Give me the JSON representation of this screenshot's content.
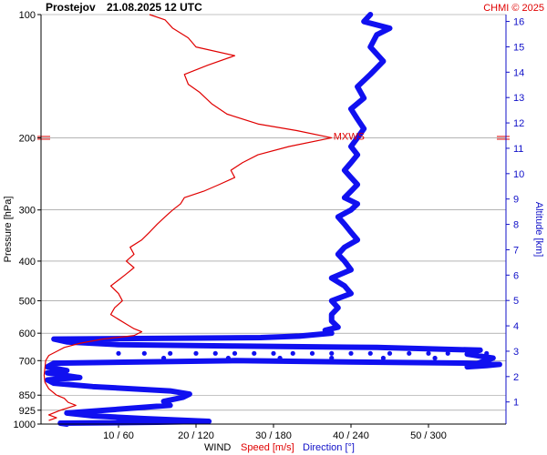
{
  "header": {
    "station": "Prostejov",
    "datetime": "21.08.2025 12 UTC",
    "credit": "CHMI © 2025"
  },
  "colors": {
    "speed": "#e00000",
    "direction": "#1010f0",
    "grid": "#888888",
    "axis": "#000000",
    "altitude_axis": "#1010c8"
  },
  "axes": {
    "left_label": "Pressure [hPa]",
    "right_label": "Altitude [km]",
    "bottom_title": "WIND",
    "bottom_speed": "Speed [m/s]",
    "bottom_direction": "Direction [°]"
  },
  "chart_data": {
    "type": "line",
    "y_scale": "log-pressure",
    "y_range_hpa": [
      1000,
      100
    ],
    "pressure_ticks": [
      100,
      200,
      300,
      400,
      500,
      600,
      700,
      850,
      925,
      1000
    ],
    "x_ticks": [
      {
        "speed": 10,
        "direction": 60,
        "label": "10 / 60"
      },
      {
        "speed": 20,
        "direction": 120,
        "label": "20 / 120"
      },
      {
        "speed": 30,
        "direction": 180,
        "label": "30 / 180"
      },
      {
        "speed": 40,
        "direction": 240,
        "label": "40 / 240"
      },
      {
        "speed": 50,
        "direction": 300,
        "label": "50 / 300"
      }
    ],
    "speed_range": [
      0,
      60
    ],
    "direction_range": [
      0,
      360
    ],
    "altitude_ticks_km": [
      1,
      2,
      3,
      4,
      5,
      6,
      7,
      8,
      9,
      10,
      11,
      12,
      13,
      14,
      15,
      16
    ],
    "max_wind": {
      "label": "MXWS",
      "pressure": 200,
      "speed": 37.5
    },
    "series": [
      {
        "name": "Speed [m/s]",
        "points": [
          [
            980,
            1.0
          ],
          [
            965,
            2.0
          ],
          [
            950,
            1.0
          ],
          [
            925,
            2.5
          ],
          [
            900,
            4.5
          ],
          [
            885,
            3.5
          ],
          [
            865,
            3.0
          ],
          [
            850,
            2.0
          ],
          [
            820,
            1.0
          ],
          [
            790,
            0.5
          ],
          [
            760,
            0.4
          ],
          [
            730,
            0.5
          ],
          [
            700,
            0.6
          ],
          [
            680,
            1.0
          ],
          [
            665,
            2.0
          ],
          [
            650,
            3.0
          ],
          [
            635,
            5.0
          ],
          [
            620,
            8.0
          ],
          [
            608,
            12.0
          ],
          [
            595,
            13.0
          ],
          [
            585,
            12.0
          ],
          [
            570,
            11.0
          ],
          [
            555,
            10.0
          ],
          [
            540,
            9.0
          ],
          [
            520,
            9.5
          ],
          [
            500,
            10.5
          ],
          [
            480,
            10.0
          ],
          [
            460,
            9.0
          ],
          [
            445,
            10.0
          ],
          [
            430,
            11.0
          ],
          [
            415,
            12.0
          ],
          [
            400,
            11.0
          ],
          [
            385,
            12.0
          ],
          [
            370,
            11.5
          ],
          [
            355,
            13.0
          ],
          [
            340,
            14.0
          ],
          [
            325,
            15.0
          ],
          [
            312,
            16.0
          ],
          [
            300,
            17.0
          ],
          [
            290,
            18.0
          ],
          [
            280,
            18.5
          ],
          [
            270,
            21.0
          ],
          [
            260,
            23.0
          ],
          [
            250,
            25.0
          ],
          [
            240,
            24.5
          ],
          [
            230,
            26.0
          ],
          [
            220,
            28.0
          ],
          [
            210,
            32.0
          ],
          [
            200,
            37.5
          ],
          [
            192,
            33.0
          ],
          [
            185,
            28.0
          ],
          [
            175,
            24.0
          ],
          [
            165,
            22.0
          ],
          [
            155,
            20.5
          ],
          [
            148,
            19.0
          ],
          [
            140,
            18.5
          ],
          [
            133,
            21.5
          ],
          [
            126,
            25.0
          ],
          [
            120,
            20.0
          ],
          [
            114,
            19.0
          ],
          [
            108,
            17.0
          ],
          [
            103,
            16.0
          ],
          [
            100,
            14.0
          ]
        ]
      },
      {
        "name": "Direction [°]",
        "points": [
          [
            1000,
            20
          ],
          [
            995,
            15
          ],
          [
            990,
            90
          ],
          [
            985,
            130
          ],
          [
            970,
            80
          ],
          [
            955,
            40
          ],
          [
            940,
            20
          ],
          [
            925,
            50
          ],
          [
            900,
            100
          ],
          [
            880,
            95
          ],
          [
            860,
            110
          ],
          [
            845,
            115
          ],
          [
            830,
            100
          ],
          [
            810,
            40
          ],
          [
            795,
            10
          ],
          [
            780,
            5
          ],
          [
            770,
            30
          ],
          [
            750,
            5
          ],
          [
            740,
            20
          ],
          [
            725,
            5
          ],
          [
            710,
            10
          ],
          [
            700,
            150
          ],
          [
            705,
            230
          ],
          [
            710,
            330
          ],
          [
            715,
            355
          ],
          [
            720,
            345
          ],
          [
            725,
            330
          ],
          [
            690,
            350
          ],
          [
            675,
            330
          ],
          [
            660,
            340
          ],
          [
            650,
            260
          ],
          [
            645,
            150
          ],
          [
            640,
            60
          ],
          [
            630,
            20
          ],
          [
            620,
            10
          ],
          [
            615,
            170
          ],
          [
            610,
            200
          ],
          [
            600,
            225
          ],
          [
            590,
            220
          ],
          [
            580,
            230
          ],
          [
            560,
            225
          ],
          [
            540,
            225
          ],
          [
            520,
            230
          ],
          [
            500,
            225
          ],
          [
            480,
            240
          ],
          [
            460,
            235
          ],
          [
            440,
            225
          ],
          [
            420,
            240
          ],
          [
            400,
            235
          ],
          [
            385,
            230
          ],
          [
            370,
            235
          ],
          [
            355,
            245
          ],
          [
            340,
            240
          ],
          [
            325,
            235
          ],
          [
            312,
            230
          ],
          [
            300,
            240
          ],
          [
            290,
            245
          ],
          [
            280,
            235
          ],
          [
            270,
            240
          ],
          [
            260,
            245
          ],
          [
            250,
            240
          ],
          [
            240,
            235
          ],
          [
            230,
            240
          ],
          [
            220,
            245
          ],
          [
            210,
            240
          ],
          [
            200,
            245
          ],
          [
            190,
            250
          ],
          [
            180,
            245
          ],
          [
            170,
            240
          ],
          [
            160,
            250
          ],
          [
            150,
            245
          ],
          [
            140,
            255
          ],
          [
            130,
            265
          ],
          [
            120,
            255
          ],
          [
            112,
            260
          ],
          [
            108,
            270
          ],
          [
            104,
            250
          ],
          [
            100,
            255
          ]
        ]
      },
      {
        "name": "Direction scatter",
        "points": [
          [
            672,
            135
          ],
          [
            672,
            165
          ],
          [
            672,
            195
          ],
          [
            672,
            225
          ],
          [
            672,
            255
          ],
          [
            672,
            285
          ],
          [
            672,
            315
          ],
          [
            672,
            345
          ],
          [
            672,
            60
          ],
          [
            672,
            80
          ],
          [
            672,
            100
          ],
          [
            672,
            120
          ],
          [
            672,
            150
          ],
          [
            672,
            180
          ],
          [
            672,
            210
          ],
          [
            672,
            240
          ],
          [
            672,
            270
          ],
          [
            672,
            300
          ],
          [
            672,
            330
          ],
          [
            690,
            95
          ],
          [
            690,
            145
          ],
          [
            690,
            185
          ],
          [
            690,
            225
          ],
          [
            690,
            265
          ],
          [
            690,
            305
          ],
          [
            690,
            345
          ]
        ]
      }
    ]
  }
}
